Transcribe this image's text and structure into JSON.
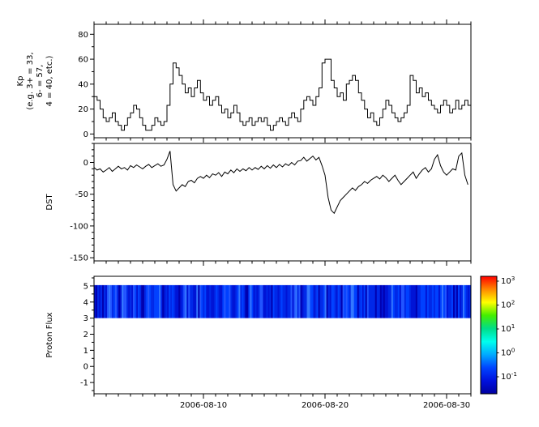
{
  "figure": {
    "background": "#ffffff",
    "axis_color": "#000000",
    "font_size": 10
  },
  "xaxis": {
    "tick_labels": [
      "2006-08-10",
      "2006-08-20",
      "2006-08-30"
    ],
    "tick_days": [
      9,
      19,
      29
    ],
    "range_days": [
      0,
      31
    ],
    "minor_every_days": 1
  },
  "chart_data": [
    {
      "type": "line",
      "step": true,
      "panel": "kp",
      "ylabel": "Kp (e.g. 3+ = 33, 6- = 57, 4 = 40, etc.)",
      "ylabel_lines": [
        "Kp",
        "(e.g. 3+ = 33,",
        "6- = 57,",
        "4 = 40, etc.)"
      ],
      "ylim": [
        -3,
        88
      ],
      "yticks": [
        0,
        20,
        40,
        60,
        80
      ],
      "yminor": 10,
      "samples_per_day": 4,
      "values": [
        30,
        27,
        20,
        13,
        10,
        13,
        17,
        10,
        7,
        3,
        7,
        13,
        17,
        23,
        20,
        13,
        7,
        3,
        3,
        7,
        13,
        10,
        7,
        10,
        23,
        40,
        57,
        53,
        47,
        40,
        33,
        37,
        30,
        37,
        43,
        33,
        27,
        30,
        23,
        27,
        30,
        23,
        17,
        20,
        13,
        17,
        23,
        17,
        10,
        7,
        10,
        13,
        7,
        10,
        13,
        10,
        13,
        7,
        3,
        7,
        10,
        13,
        10,
        7,
        13,
        17,
        13,
        10,
        20,
        27,
        30,
        27,
        23,
        30,
        37,
        57,
        60,
        60,
        43,
        37,
        30,
        33,
        27,
        40,
        43,
        47,
        43,
        33,
        27,
        20,
        13,
        17,
        10,
        7,
        13,
        20,
        27,
        23,
        17,
        13,
        10,
        13,
        17,
        23,
        47,
        43,
        33,
        37,
        30,
        33,
        27,
        23,
        20,
        17,
        23,
        27,
        23,
        17,
        20,
        27,
        20,
        23,
        27,
        23
      ]
    },
    {
      "type": "line",
      "step": false,
      "panel": "dst",
      "ylabel": "DST",
      "ylabel_lines": [
        "DST"
      ],
      "ylim": [
        -155,
        30
      ],
      "yticks": [
        0,
        -50,
        -100,
        -150
      ],
      "yminor": 10,
      "samples_per_day": 4,
      "values": [
        -8,
        -12,
        -10,
        -15,
        -12,
        -8,
        -14,
        -10,
        -6,
        -10,
        -8,
        -12,
        -5,
        -8,
        -4,
        -7,
        -10,
        -6,
        -3,
        -8,
        -5,
        -2,
        -6,
        -4,
        5,
        18,
        -35,
        -45,
        -40,
        -35,
        -38,
        -30,
        -28,
        -32,
        -25,
        -22,
        -25,
        -20,
        -24,
        -18,
        -20,
        -16,
        -22,
        -15,
        -18,
        -12,
        -16,
        -10,
        -14,
        -10,
        -13,
        -8,
        -12,
        -8,
        -11,
        -6,
        -10,
        -5,
        -9,
        -4,
        -8,
        -3,
        -7,
        -2,
        -5,
        0,
        -4,
        2,
        3,
        8,
        2,
        6,
        10,
        4,
        8,
        -5,
        -20,
        -55,
        -75,
        -80,
        -70,
        -60,
        -55,
        -50,
        -45,
        -40,
        -44,
        -38,
        -35,
        -30,
        -33,
        -28,
        -25,
        -22,
        -26,
        -20,
        -24,
        -30,
        -25,
        -20,
        -28,
        -35,
        -30,
        -25,
        -20,
        -15,
        -25,
        -18,
        -12,
        -8,
        -15,
        -10,
        5,
        12,
        -5,
        -15,
        -20,
        -15,
        -10,
        -12,
        10,
        15,
        -20,
        -35
      ]
    },
    {
      "type": "heatmap",
      "panel": "proton-flux",
      "ylabel": "Proton Flux",
      "ylabel_lines": [
        "Proton Flux"
      ],
      "ylim": [
        -1.7,
        5.6
      ],
      "yticks": [
        -1,
        0,
        1,
        2,
        3,
        4,
        5
      ],
      "yminor": 0.5,
      "band": {
        "ymin": 3.0,
        "ymax": 5.05,
        "stripes": 232,
        "palette": [
          "#0000b0",
          "#0014d6",
          "#0028e8",
          "#0040ff",
          "#2255ff",
          "#3377ff"
        ],
        "weights": [
          2,
          4,
          5,
          4,
          2,
          1
        ]
      },
      "colorbar": {
        "ticks": [
          "10^3",
          "10^2",
          "10^1",
          "10^0",
          "10^-1"
        ],
        "gradient_colors": [
          "#ff0000",
          "#ff8800",
          "#ffff00",
          "#44ee00",
          "#00dd88",
          "#00ffee",
          "#00aaff",
          "#0044ff",
          "#0011dd",
          "#0000a0"
        ]
      }
    }
  ]
}
